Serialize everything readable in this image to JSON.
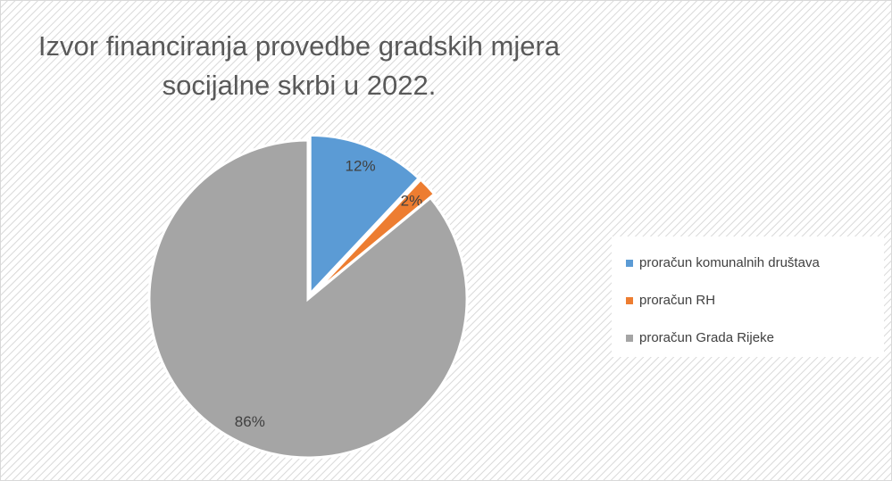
{
  "chart_data": {
    "type": "pie",
    "title": "Izvor financiranja provedbe gradskih mjera socijalne skrbi u 2022.",
    "categories": [
      "proračun komunalnih društava",
      "proračun RH",
      "proračun Grada Rijeke"
    ],
    "values": [
      12,
      2,
      86
    ],
    "value_labels": [
      "12%",
      "2%",
      "86%"
    ],
    "colors": [
      "#5b9bd5",
      "#ed7d31",
      "#a5a5a5"
    ],
    "legend": "right"
  }
}
